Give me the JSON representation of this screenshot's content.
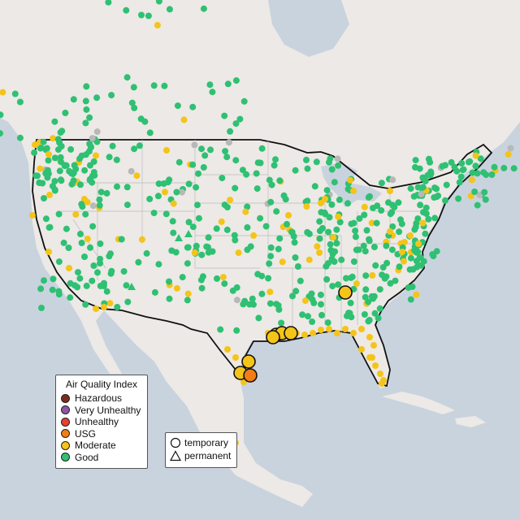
{
  "map": {
    "legend": {
      "title": "Air Quality Index",
      "categories": [
        {
          "label": "Hazardous",
          "color": "#7e2a1e"
        },
        {
          "label": "Very Unhealthy",
          "color": "#8e56a5"
        },
        {
          "label": "Unhealthy",
          "color": "#e8412e"
        },
        {
          "label": "USG",
          "color": "#f07d16"
        },
        {
          "label": "Moderate",
          "color": "#f4c418"
        },
        {
          "label": "Good",
          "color": "#2fc073"
        }
      ]
    },
    "monitor_types": [
      {
        "label": "temporary",
        "shape": "circle-icon"
      },
      {
        "label": "permanent",
        "shape": "triangle-icon"
      }
    ],
    "colors": {
      "ocean": "#c9d3de",
      "land": "#ece9e6",
      "border": "#111111",
      "good": "#2fc073",
      "moderate": "#f4c418",
      "usg": "#f07d16",
      "no_data": "#b8b8b8"
    }
  }
}
